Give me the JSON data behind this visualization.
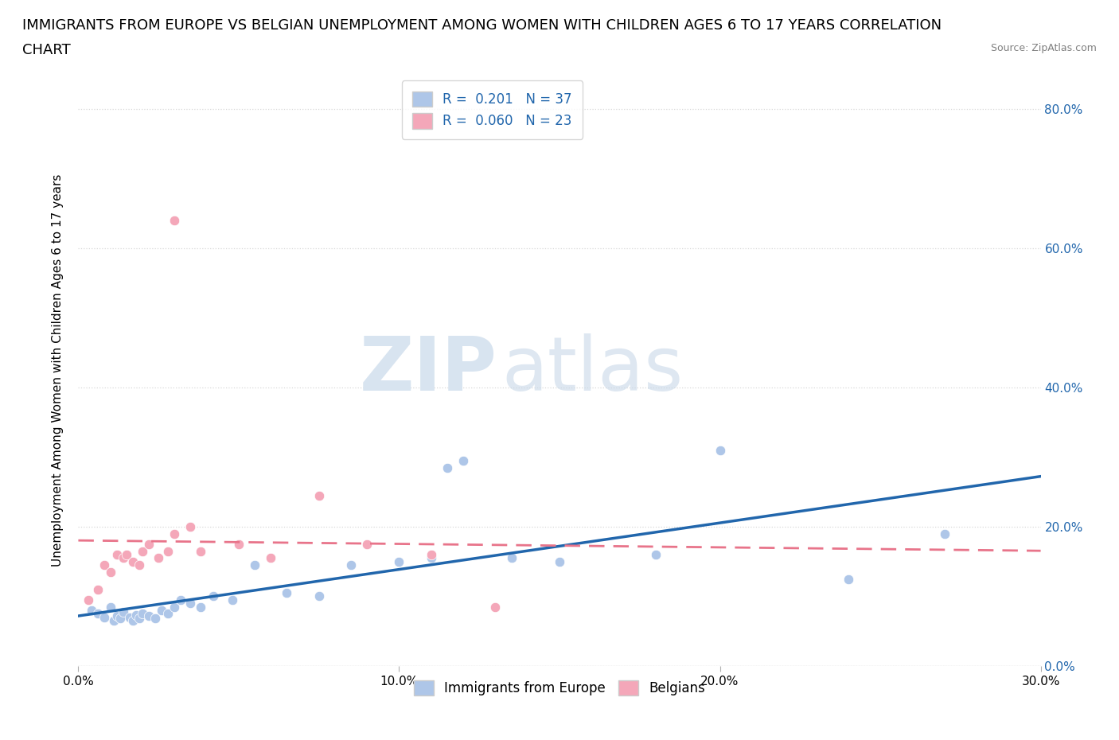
{
  "title_line1": "IMMIGRANTS FROM EUROPE VS BELGIAN UNEMPLOYMENT AMONG WOMEN WITH CHILDREN AGES 6 TO 17 YEARS CORRELATION",
  "title_line2": "CHART",
  "source": "Source: ZipAtlas.com",
  "ylabel": "Unemployment Among Women with Children Ages 6 to 17 years",
  "xlim": [
    0.0,
    0.3
  ],
  "ylim": [
    0.0,
    0.85
  ],
  "xticks": [
    0.0,
    0.1,
    0.2,
    0.3
  ],
  "xtick_labels": [
    "0.0%",
    "10.0%",
    "20.0%",
    "30.0%"
  ],
  "ytick_labels_right": [
    "80.0%",
    "60.0%",
    "40.0%",
    "20.0%",
    "0.0%"
  ],
  "ytick_vals_right": [
    0.8,
    0.6,
    0.4,
    0.2,
    0.0
  ],
  "R_blue": 0.201,
  "N_blue": 37,
  "R_pink": 0.06,
  "N_pink": 23,
  "blue_scatter_x": [
    0.004,
    0.006,
    0.008,
    0.01,
    0.011,
    0.012,
    0.013,
    0.014,
    0.016,
    0.017,
    0.018,
    0.019,
    0.02,
    0.022,
    0.024,
    0.026,
    0.028,
    0.03,
    0.032,
    0.035,
    0.038,
    0.042,
    0.048,
    0.055,
    0.065,
    0.075,
    0.085,
    0.1,
    0.11,
    0.115,
    0.12,
    0.135,
    0.15,
    0.18,
    0.2,
    0.24,
    0.27
  ],
  "blue_scatter_y": [
    0.08,
    0.075,
    0.07,
    0.085,
    0.065,
    0.072,
    0.068,
    0.078,
    0.07,
    0.065,
    0.073,
    0.068,
    0.075,
    0.072,
    0.068,
    0.08,
    0.075,
    0.085,
    0.095,
    0.09,
    0.085,
    0.1,
    0.095,
    0.145,
    0.105,
    0.1,
    0.145,
    0.15,
    0.155,
    0.285,
    0.295,
    0.155,
    0.15,
    0.16,
    0.31,
    0.125,
    0.19
  ],
  "pink_scatter_x": [
    0.003,
    0.006,
    0.008,
    0.01,
    0.012,
    0.014,
    0.015,
    0.017,
    0.019,
    0.02,
    0.022,
    0.025,
    0.028,
    0.03,
    0.035,
    0.038,
    0.05,
    0.06,
    0.075,
    0.09,
    0.11,
    0.13,
    0.03
  ],
  "pink_scatter_y": [
    0.095,
    0.11,
    0.145,
    0.135,
    0.16,
    0.155,
    0.16,
    0.15,
    0.145,
    0.165,
    0.175,
    0.155,
    0.165,
    0.19,
    0.2,
    0.165,
    0.175,
    0.155,
    0.245,
    0.175,
    0.16,
    0.085,
    0.64
  ],
  "blue_color": "#aec6e8",
  "pink_color": "#f4a7b9",
  "blue_line_color": "#2166ac",
  "pink_line_color": "#e8748a",
  "watermark_zip": "ZIP",
  "watermark_atlas": "atlas",
  "background_color": "#ffffff",
  "grid_color": "#d8d8d8",
  "title_fontsize": 13,
  "axis_label_fontsize": 11,
  "tick_fontsize": 11,
  "legend_fontsize": 12
}
